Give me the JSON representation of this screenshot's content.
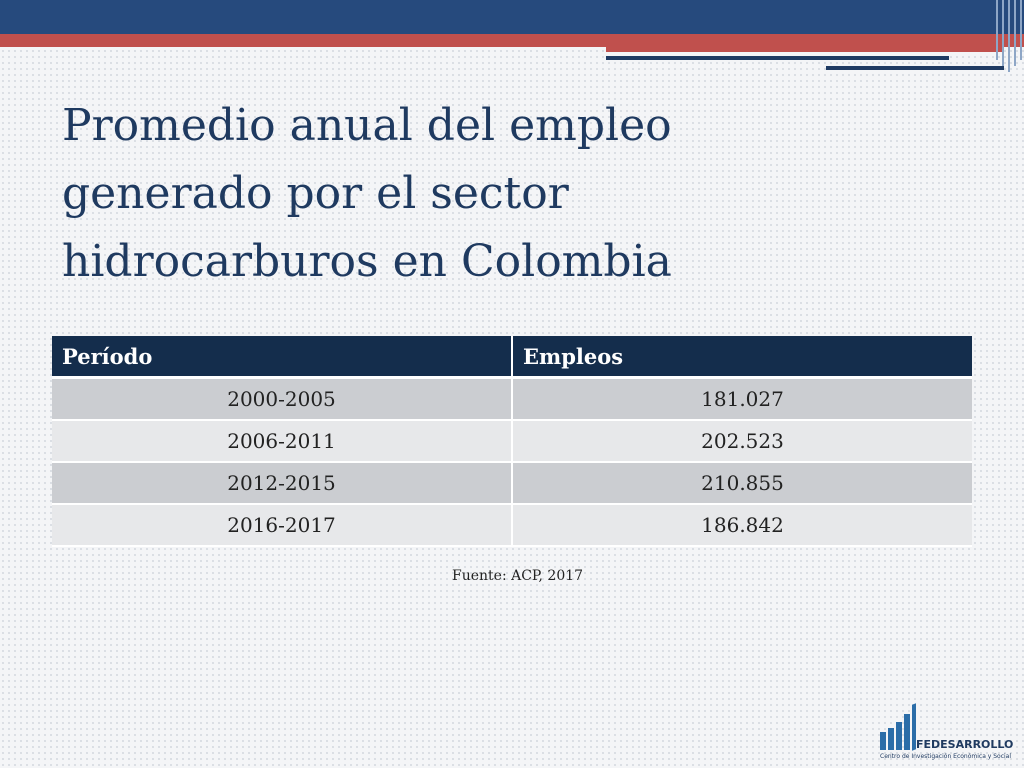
{
  "title_lines": [
    "Promedio anual del empleo",
    "generado por el sector",
    "hidrocarburos en Colombia"
  ],
  "table": {
    "headers": [
      "Período",
      "Empleos"
    ],
    "rows": [
      [
        "2000-2005",
        "181.027"
      ],
      [
        "2006-2011",
        "202.523"
      ],
      [
        "2012-2015",
        "210.855"
      ],
      [
        "2016-2017",
        "186.842"
      ]
    ]
  },
  "source": "Fuente: ACP, 2017",
  "logo": {
    "name": "FEDESARROLLO",
    "tagline": "Centro de Investigación Económica y Social"
  },
  "colors": {
    "top_bar": "#264a7d",
    "accent_red": "#c0504d",
    "header_bg": "#142d4c",
    "title_text": "#1f3a60"
  }
}
